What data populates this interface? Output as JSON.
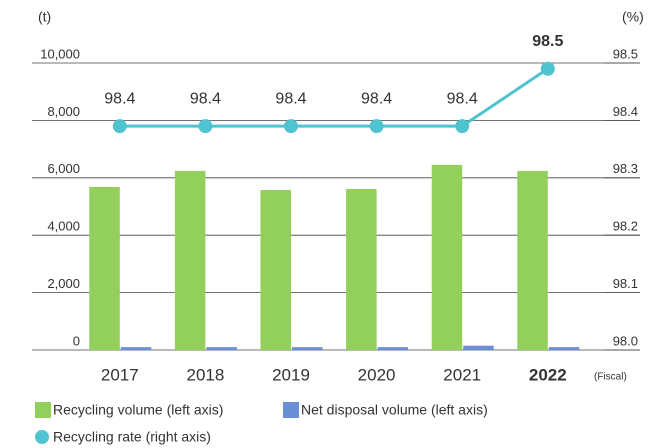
{
  "chart_data": {
    "type": "bar+line",
    "y_unit": "(t)",
    "y2_unit": "(%)",
    "x_unit": "(Fiscal)",
    "categories": [
      "2017",
      "2018",
      "2019",
      "2020",
      "2021",
      "2022"
    ],
    "highlight_index": 5,
    "series": [
      {
        "name": "Recycling volume (left axis)",
        "type": "bar",
        "color": "#92cf5b",
        "values": [
          5680,
          6240,
          5575,
          5610,
          6450,
          6240
        ]
      },
      {
        "name": "Net disposal volume (left axis)",
        "type": "bar",
        "color": "#6b8fd6",
        "values": [
          100,
          100,
          100,
          100,
          150,
          100
        ]
      },
      {
        "name": "Recycling rate (right axis)",
        "type": "line",
        "axis": "y2",
        "color": "#4fc3cf",
        "values": [
          98.39,
          98.39,
          98.39,
          98.39,
          98.39,
          98.49
        ],
        "value_labels": [
          "98.4",
          "98.4",
          "98.4",
          "98.4",
          "98.4",
          "98.5"
        ]
      }
    ],
    "ylim": [
      0,
      10000
    ],
    "yticks": [
      0,
      {
        "value": 2000,
        "label": "2,000"
      },
      {
        "value": 4000,
        "label": "4,000"
      },
      {
        "value": 6000,
        "label": "6,000"
      },
      {
        "value": 8000,
        "label": "8,000"
      },
      {
        "value": 10000,
        "label": "10,000"
      }
    ],
    "y2lim": [
      98.0,
      98.5
    ],
    "y2ticks": [
      {
        "value": 98.0,
        "label": "98.0"
      },
      98.1,
      98.2,
      98.3,
      98.4,
      98.5
    ],
    "grid": true
  }
}
